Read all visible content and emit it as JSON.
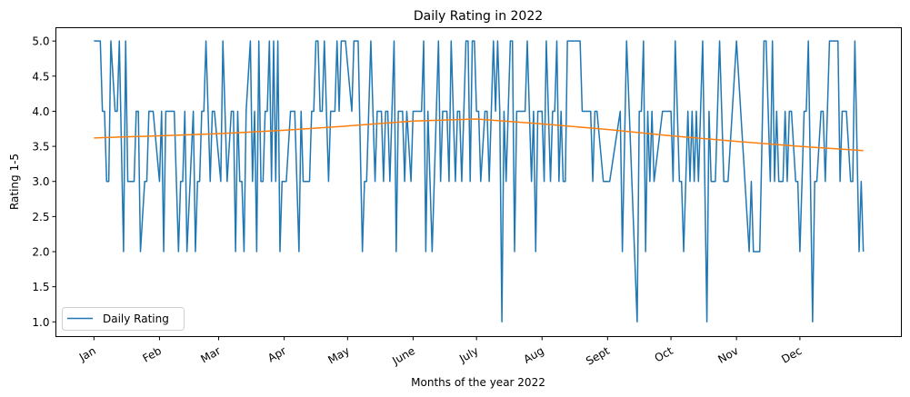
{
  "chart_data": {
    "type": "line",
    "title": "Daily Rating in 2022",
    "xlabel": "Months of the year 2022",
    "ylabel": "Rating 1-5",
    "xlim": [
      "2021-12-14",
      "2023-01-18"
    ],
    "ylim": [
      0.79,
      5.19
    ],
    "x_ticks": [
      {
        "date": "2022-01-01",
        "label": "Jan"
      },
      {
        "date": "2022-02-01",
        "label": "Feb"
      },
      {
        "date": "2022-03-01",
        "label": "Mar"
      },
      {
        "date": "2022-04-01",
        "label": "Apr"
      },
      {
        "date": "2022-05-01",
        "label": "May"
      },
      {
        "date": "2022-06-01",
        "label": "June"
      },
      {
        "date": "2022-07-01",
        "label": "July"
      },
      {
        "date": "2022-08-01",
        "label": "Aug"
      },
      {
        "date": "2022-09-01",
        "label": "Sept"
      },
      {
        "date": "2022-10-01",
        "label": "Oct"
      },
      {
        "date": "2022-11-01",
        "label": "Nov"
      },
      {
        "date": "2022-12-01",
        "label": "Dec"
      }
    ],
    "y_ticks": [
      "1.0",
      "1.5",
      "2.0",
      "2.5",
      "3.0",
      "3.5",
      "4.0",
      "4.5",
      "5.0"
    ],
    "grid": false,
    "legend": {
      "placement": "lower-left",
      "entries": [
        "Daily Rating"
      ]
    },
    "series": [
      {
        "name": "Daily Rating",
        "color": "#1f77b4",
        "points": [
          [
            "2022-01-01",
            5
          ],
          [
            "2022-01-04",
            5
          ],
          [
            "2022-01-05",
            4
          ],
          [
            "2022-01-06",
            4
          ],
          [
            "2022-01-07",
            3
          ],
          [
            "2022-01-08",
            3
          ],
          [
            "2022-01-09",
            5
          ],
          [
            "2022-01-11",
            4
          ],
          [
            "2022-01-12",
            4
          ],
          [
            "2022-01-13",
            5
          ],
          [
            "2022-01-15",
            2
          ],
          [
            "2022-01-16",
            5
          ],
          [
            "2022-01-17",
            3
          ],
          [
            "2022-01-20",
            3
          ],
          [
            "2022-01-21",
            4
          ],
          [
            "2022-01-22",
            4
          ],
          [
            "2022-01-23",
            2
          ],
          [
            "2022-01-25",
            3
          ],
          [
            "2022-01-26",
            3
          ],
          [
            "2022-01-27",
            4
          ],
          [
            "2022-01-29",
            4
          ],
          [
            "2022-02-01",
            3
          ],
          [
            "2022-02-02",
            4
          ],
          [
            "2022-02-03",
            2
          ],
          [
            "2022-02-04",
            4
          ],
          [
            "2022-02-08",
            4
          ],
          [
            "2022-02-10",
            2
          ],
          [
            "2022-02-11",
            3
          ],
          [
            "2022-02-12",
            3
          ],
          [
            "2022-02-13",
            4
          ],
          [
            "2022-02-14",
            2
          ],
          [
            "2022-02-17",
            4
          ],
          [
            "2022-02-18",
            2
          ],
          [
            "2022-02-19",
            3
          ],
          [
            "2022-02-20",
            3
          ],
          [
            "2022-02-21",
            4
          ],
          [
            "2022-02-22",
            4
          ],
          [
            "2022-02-23",
            5
          ],
          [
            "2022-02-25",
            3
          ],
          [
            "2022-02-26",
            4
          ],
          [
            "2022-02-27",
            4
          ],
          [
            "2022-03-02",
            3
          ],
          [
            "2022-03-03",
            5
          ],
          [
            "2022-03-05",
            3
          ],
          [
            "2022-03-07",
            4
          ],
          [
            "2022-03-08",
            4
          ],
          [
            "2022-03-09",
            2
          ],
          [
            "2022-03-10",
            4
          ],
          [
            "2022-03-11",
            3
          ],
          [
            "2022-03-12",
            3
          ],
          [
            "2022-03-13",
            2
          ],
          [
            "2022-03-14",
            4
          ],
          [
            "2022-03-16",
            5
          ],
          [
            "2022-03-17",
            3
          ],
          [
            "2022-03-18",
            4
          ],
          [
            "2022-03-19",
            2
          ],
          [
            "2022-03-20",
            5
          ],
          [
            "2022-03-21",
            3
          ],
          [
            "2022-03-22",
            3
          ],
          [
            "2022-03-23",
            4
          ],
          [
            "2022-03-24",
            4
          ],
          [
            "2022-03-25",
            5
          ],
          [
            "2022-03-26",
            3
          ],
          [
            "2022-03-27",
            5
          ],
          [
            "2022-03-28",
            3
          ],
          [
            "2022-03-29",
            5
          ],
          [
            "2022-03-30",
            2
          ],
          [
            "2022-03-31",
            3
          ],
          [
            "2022-04-02",
            3
          ],
          [
            "2022-04-04",
            4
          ],
          [
            "2022-04-06",
            4
          ],
          [
            "2022-04-08",
            2
          ],
          [
            "2022-04-09",
            4
          ],
          [
            "2022-04-10",
            3
          ],
          [
            "2022-04-13",
            3
          ],
          [
            "2022-04-14",
            4
          ],
          [
            "2022-04-15",
            4
          ],
          [
            "2022-04-16",
            5
          ],
          [
            "2022-04-17",
            5
          ],
          [
            "2022-04-18",
            4
          ],
          [
            "2022-04-19",
            4
          ],
          [
            "2022-04-20",
            5
          ],
          [
            "2022-04-22",
            3
          ],
          [
            "2022-04-23",
            4
          ],
          [
            "2022-04-25",
            4
          ],
          [
            "2022-04-26",
            5
          ],
          [
            "2022-04-27",
            4
          ],
          [
            "2022-04-28",
            5
          ],
          [
            "2022-04-30",
            5
          ],
          [
            "2022-05-03",
            4
          ],
          [
            "2022-05-04",
            5
          ],
          [
            "2022-05-06",
            5
          ],
          [
            "2022-05-08",
            2
          ],
          [
            "2022-05-09",
            3
          ],
          [
            "2022-05-10",
            3
          ],
          [
            "2022-05-12",
            5
          ],
          [
            "2022-05-14",
            3
          ],
          [
            "2022-05-15",
            4
          ],
          [
            "2022-05-17",
            4
          ],
          [
            "2022-05-18",
            3
          ],
          [
            "2022-05-19",
            4
          ],
          [
            "2022-05-20",
            4
          ],
          [
            "2022-05-21",
            3
          ],
          [
            "2022-05-23",
            5
          ],
          [
            "2022-05-24",
            2
          ],
          [
            "2022-05-25",
            4
          ],
          [
            "2022-05-27",
            4
          ],
          [
            "2022-05-28",
            3
          ],
          [
            "2022-05-29",
            4
          ],
          [
            "2022-05-31",
            3
          ],
          [
            "2022-06-01",
            4
          ],
          [
            "2022-06-05",
            4
          ],
          [
            "2022-06-06",
            5
          ],
          [
            "2022-06-07",
            2
          ],
          [
            "2022-06-08",
            4
          ],
          [
            "2022-06-10",
            2
          ],
          [
            "2022-06-13",
            5
          ],
          [
            "2022-06-14",
            3
          ],
          [
            "2022-06-15",
            4
          ],
          [
            "2022-06-17",
            4
          ],
          [
            "2022-06-18",
            3
          ],
          [
            "2022-06-19",
            5
          ],
          [
            "2022-06-21",
            3
          ],
          [
            "2022-06-22",
            4
          ],
          [
            "2022-06-23",
            4
          ],
          [
            "2022-06-24",
            3
          ],
          [
            "2022-06-26",
            5
          ],
          [
            "2022-06-27",
            5
          ],
          [
            "2022-06-28",
            3
          ],
          [
            "2022-06-29",
            5
          ],
          [
            "2022-06-30",
            5
          ],
          [
            "2022-07-01",
            4
          ],
          [
            "2022-07-02",
            4
          ],
          [
            "2022-07-03",
            3
          ],
          [
            "2022-07-05",
            4
          ],
          [
            "2022-07-06",
            4
          ],
          [
            "2022-07-07",
            3
          ],
          [
            "2022-07-09",
            5
          ],
          [
            "2022-07-10",
            4
          ],
          [
            "2022-07-11",
            5
          ],
          [
            "2022-07-12",
            4
          ],
          [
            "2022-07-13",
            1
          ],
          [
            "2022-07-14",
            4
          ],
          [
            "2022-07-15",
            3
          ],
          [
            "2022-07-17",
            5
          ],
          [
            "2022-07-18",
            5
          ],
          [
            "2022-07-19",
            2
          ],
          [
            "2022-07-20",
            4
          ],
          [
            "2022-07-24",
            4
          ],
          [
            "2022-07-25",
            5
          ],
          [
            "2022-07-27",
            3
          ],
          [
            "2022-07-28",
            4
          ],
          [
            "2022-07-29",
            2
          ],
          [
            "2022-07-30",
            4
          ],
          [
            "2022-08-01",
            4
          ],
          [
            "2022-08-02",
            3
          ],
          [
            "2022-08-03",
            5
          ],
          [
            "2022-08-05",
            3
          ],
          [
            "2022-08-06",
            4
          ],
          [
            "2022-08-07",
            4
          ],
          [
            "2022-08-08",
            5
          ],
          [
            "2022-08-09",
            3
          ],
          [
            "2022-08-10",
            4
          ],
          [
            "2022-08-11",
            3
          ],
          [
            "2022-08-12",
            3
          ],
          [
            "2022-08-13",
            5
          ],
          [
            "2022-08-19",
            5
          ],
          [
            "2022-08-20",
            4
          ],
          [
            "2022-08-24",
            4
          ],
          [
            "2022-08-25",
            3
          ],
          [
            "2022-08-26",
            4
          ],
          [
            "2022-08-27",
            4
          ],
          [
            "2022-08-30",
            3
          ],
          [
            "2022-09-02",
            3
          ],
          [
            "2022-09-07",
            4
          ],
          [
            "2022-09-08",
            2
          ],
          [
            "2022-09-10",
            5
          ],
          [
            "2022-09-15",
            1
          ],
          [
            "2022-09-16",
            4
          ],
          [
            "2022-09-17",
            4
          ],
          [
            "2022-09-18",
            5
          ],
          [
            "2022-09-19",
            2
          ],
          [
            "2022-09-20",
            4
          ],
          [
            "2022-09-21",
            3
          ],
          [
            "2022-09-22",
            4
          ],
          [
            "2022-09-23",
            3
          ],
          [
            "2022-09-27",
            4
          ],
          [
            "2022-10-01",
            4
          ],
          [
            "2022-10-02",
            3
          ],
          [
            "2022-10-03",
            5
          ],
          [
            "2022-10-05",
            3
          ],
          [
            "2022-10-06",
            3
          ],
          [
            "2022-10-07",
            2
          ],
          [
            "2022-10-09",
            4
          ],
          [
            "2022-10-10",
            3
          ],
          [
            "2022-10-11",
            4
          ],
          [
            "2022-10-12",
            3
          ],
          [
            "2022-10-13",
            4
          ],
          [
            "2022-10-14",
            3
          ],
          [
            "2022-10-15",
            4
          ],
          [
            "2022-10-16",
            5
          ],
          [
            "2022-10-18",
            1
          ],
          [
            "2022-10-19",
            4
          ],
          [
            "2022-10-20",
            3
          ],
          [
            "2022-10-22",
            3
          ],
          [
            "2022-10-24",
            5
          ],
          [
            "2022-10-26",
            3
          ],
          [
            "2022-10-28",
            3
          ],
          [
            "2022-11-01",
            5
          ],
          [
            "2022-11-07",
            2
          ],
          [
            "2022-11-08",
            3
          ],
          [
            "2022-11-09",
            2
          ],
          [
            "2022-11-12",
            2
          ],
          [
            "2022-11-14",
            5
          ],
          [
            "2022-11-15",
            5
          ],
          [
            "2022-11-17",
            3
          ],
          [
            "2022-11-18",
            5
          ],
          [
            "2022-11-19",
            3
          ],
          [
            "2022-11-20",
            4
          ],
          [
            "2022-11-21",
            3
          ],
          [
            "2022-11-23",
            3
          ],
          [
            "2022-11-24",
            4
          ],
          [
            "2022-11-25",
            3
          ],
          [
            "2022-11-26",
            4
          ],
          [
            "2022-11-27",
            4
          ],
          [
            "2022-11-29",
            3
          ],
          [
            "2022-11-30",
            3
          ],
          [
            "2022-12-01",
            2
          ],
          [
            "2022-12-03",
            4
          ],
          [
            "2022-12-04",
            4
          ],
          [
            "2022-12-05",
            5
          ],
          [
            "2022-12-07",
            1
          ],
          [
            "2022-12-08",
            3
          ],
          [
            "2022-12-09",
            3
          ],
          [
            "2022-12-11",
            4
          ],
          [
            "2022-12-12",
            4
          ],
          [
            "2022-12-13",
            3
          ],
          [
            "2022-12-15",
            5
          ],
          [
            "2022-12-19",
            5
          ],
          [
            "2022-12-20",
            3
          ],
          [
            "2022-12-21",
            4
          ],
          [
            "2022-12-23",
            4
          ],
          [
            "2022-12-25",
            3
          ],
          [
            "2022-12-26",
            3
          ],
          [
            "2022-12-27",
            5
          ],
          [
            "2022-12-29",
            2
          ],
          [
            "2022-12-30",
            3
          ],
          [
            "2022-12-31",
            2
          ]
        ]
      },
      {
        "color": "#ff7f0e",
        "points": [
          [
            "2022-01-01",
            3.62
          ],
          [
            "2022-02-01",
            3.65
          ],
          [
            "2022-03-01",
            3.68
          ],
          [
            "2022-04-01",
            3.73
          ],
          [
            "2022-05-01",
            3.79
          ],
          [
            "2022-06-01",
            3.86
          ],
          [
            "2022-07-01",
            3.89
          ],
          [
            "2022-08-01",
            3.82
          ],
          [
            "2022-09-01",
            3.74
          ],
          [
            "2022-10-01",
            3.65
          ],
          [
            "2022-11-01",
            3.57
          ],
          [
            "2022-12-01",
            3.5
          ],
          [
            "2022-12-31",
            3.44
          ]
        ]
      }
    ]
  }
}
